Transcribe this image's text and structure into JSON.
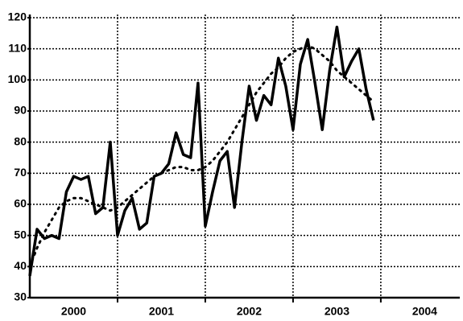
{
  "chart_data": {
    "type": "line",
    "x": [
      2000,
      2000.083,
      2000.167,
      2000.25,
      2000.333,
      2000.417,
      2000.5,
      2000.583,
      2000.667,
      2000.75,
      2000.833,
      2000.917,
      2001,
      2001.083,
      2001.167,
      2001.25,
      2001.333,
      2001.417,
      2001.5,
      2001.583,
      2001.667,
      2001.75,
      2001.833,
      2001.917,
      2002,
      2002.083,
      2002.167,
      2002.25,
      2002.333,
      2002.417,
      2002.5,
      2002.583,
      2002.667,
      2002.75,
      2002.833,
      2002.917,
      2003,
      2003.083,
      2003.167,
      2003.25,
      2003.333,
      2003.417,
      2003.5,
      2003.583,
      2003.667,
      2003.75,
      2003.833,
      2003.917
    ],
    "series": [
      {
        "color": "#000000",
        "dash": "solid",
        "values": [
          37,
          52,
          49,
          50,
          49,
          64,
          69,
          68,
          69,
          57,
          59,
          80,
          50,
          58,
          62,
          52,
          54,
          69,
          70,
          73,
          83,
          76,
          75,
          99,
          53,
          64,
          74,
          77,
          59,
          80,
          98,
          87,
          95,
          92,
          107,
          98,
          84,
          105,
          113,
          99,
          84,
          103,
          117,
          101,
          106,
          110,
          97,
          87
        ]
      },
      {
        "color": "#000000",
        "dash": "dotted",
        "values": [
          40,
          46,
          51,
          55,
          59,
          61,
          62,
          62,
          61,
          60,
          59,
          58,
          59,
          61,
          63,
          65,
          67,
          69,
          70,
          71,
          72,
          72,
          71,
          71,
          72,
          74,
          77,
          80,
          84,
          88,
          92,
          96,
          99,
          102,
          104,
          107,
          109,
          110,
          111,
          110,
          108,
          106,
          103,
          101,
          99,
          97,
          95,
          93
        ]
      }
    ],
    "xlim": [
      2000,
      2004.9
    ],
    "xticks": [
      {
        "value": 2000.5,
        "label": "2000"
      },
      {
        "value": 2001.5,
        "label": "2001"
      },
      {
        "value": 2002.5,
        "label": "2002"
      },
      {
        "value": 2003.5,
        "label": "2003"
      },
      {
        "value": 2004.5,
        "label": "2004"
      }
    ],
    "x_grid": [
      2001,
      2002,
      2003,
      2004
    ],
    "ylim": [
      30,
      120
    ],
    "yticks": [
      30,
      40,
      50,
      60,
      70,
      80,
      90,
      100,
      110,
      120
    ],
    "grid": true
  }
}
